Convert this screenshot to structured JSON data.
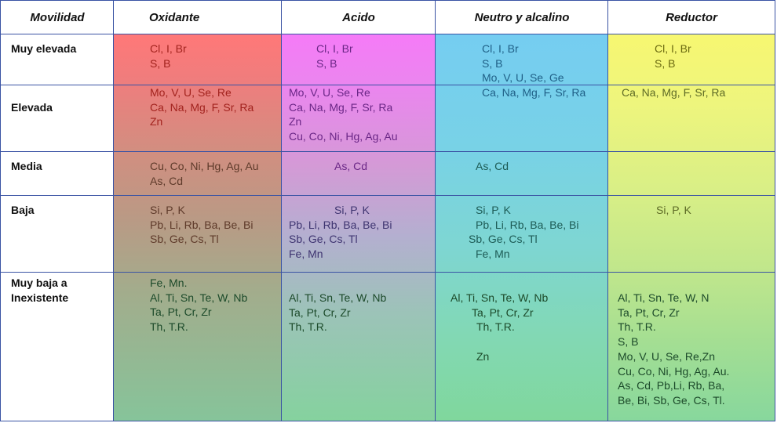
{
  "headers": {
    "movilidad": "Movilidad",
    "oxidante": "Oxidante",
    "acido": "Acido",
    "neutro": "Neutro y alcalino",
    "reductor": "Reductor"
  },
  "rows": [
    {
      "label": "Muy elevada",
      "oxidante": [
        "Cl, I, Br",
        "S, B"
      ],
      "acido": [
        "Cl, I, Br",
        "S, B"
      ],
      "neutro": [
        "Cl, I, Br",
        "S, B",
        "Mo, V, U, Se, Ge"
      ],
      "reductor": [
        "Cl, I, Br",
        "S, B"
      ]
    },
    {
      "label": "Elevada",
      "oxidante": [
        "Mo, V, U, Se, Re",
        "Ca, Na, Mg, F, Sr, Ra",
        "Zn"
      ],
      "acido": [
        "Mo, V, U, Se, Re",
        "Ca, Na, Mg, F, Sr, Ra",
        "Zn",
        "Cu, Co, Ni, Hg, Ag, Au"
      ],
      "neutro": [
        "Ca, Na, Mg, F, Sr, Ra"
      ],
      "reductor": [
        "Ca, Na, Mg, F, Sr, Ra"
      ]
    },
    {
      "label": "Media",
      "oxidante": [
        "Cu, Co, Ni, Hg, Ag, Au",
        "As, Cd"
      ],
      "acido": [
        "As, Cd"
      ],
      "neutro": [
        "As, Cd"
      ],
      "reductor": []
    },
    {
      "label": "Baja",
      "oxidante": [
        "Si, P, K",
        "Pb, Li, Rb, Ba, Be, Bi",
        "Sb, Ge, Cs, Tl"
      ],
      "acido": [
        "Si, P, K",
        "Pb, Li, Rb, Ba, Be, Bi",
        "Sb, Ge, Cs, Tl",
        "Fe, Mn"
      ],
      "neutro": [
        "Si, P, K",
        "Pb, Li, Rb, Ba, Be, Bi",
        "Sb, Ge, Cs, Tl",
        "Fe, Mn"
      ],
      "reductor": [
        "Si, P, K"
      ]
    },
    {
      "label": "Muy baja a\nInexistente",
      "oxidante": [
        "Fe, Mn.",
        "Al, Ti, Sn, Te, W, Nb",
        "Ta, Pt, Cr, Zr",
        "Th, T.R."
      ],
      "acido": [
        "Al, Ti, Sn, Te, W, Nb",
        "Ta, Pt, Cr, Zr",
        "Th, T.R."
      ],
      "neutro": [
        "Al, Ti, Sn, Te, W, Nb",
        "Ta, Pt, Cr, Zr",
        "Th, T.R.",
        "",
        "Zn"
      ],
      "reductor": [
        "Al, Ti, Sn, Te, W, N",
        "Ta, Pt, Cr, Zr",
        "Th, T.R.",
        "S, B",
        "Mo,  V,  U,  Se,  Re,Zn",
        "Cu, Co, Ni, Hg, Ag, Au.",
        "As, Cd, Pb,Li, Rb, Ba,",
        "Be, Bi, Sb, Ge, Cs, Tl."
      ]
    }
  ],
  "colors": {
    "grid": "#3a53a4",
    "oxidante_top": "#ff7878",
    "acido_top": "#f57bf7",
    "neutro_top": "#75cdf1",
    "reductor_top": "#f7f771",
    "bottom": "#85d29e"
  }
}
